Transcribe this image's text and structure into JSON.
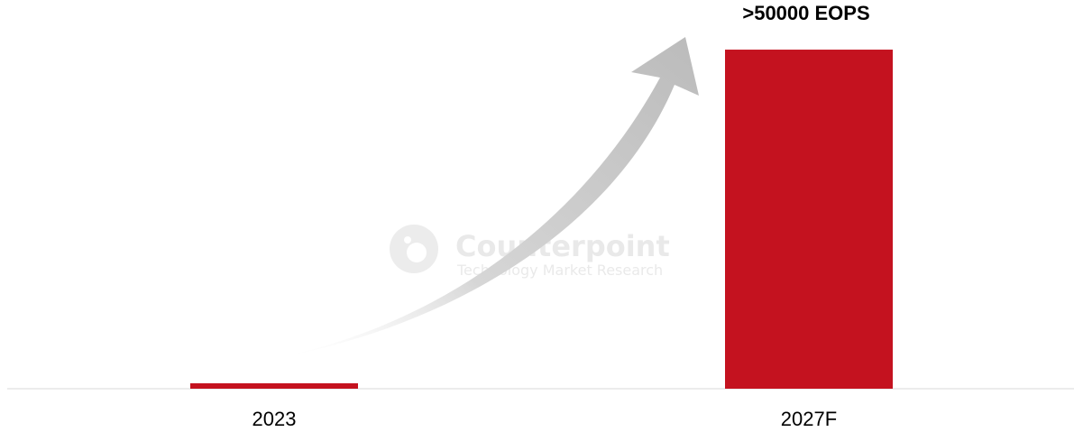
{
  "watermark": {
    "name": "Counterpoint",
    "tagline": "Technology Market Research"
  },
  "chart_data": {
    "type": "bar",
    "categories": [
      "2023",
      "2027F"
    ],
    "values": [
      0.8,
      50000
    ],
    "bar_labels": [
      "",
      ">50000 EOPS"
    ],
    "title": "",
    "xlabel": "",
    "ylabel": "",
    "ylim": [
      0,
      52000
    ],
    "grid": false,
    "legend": "none",
    "bar_color": "#C4121F",
    "arrow_color": "#BDBDBD",
    "axis_color": "#D9D9D9"
  }
}
